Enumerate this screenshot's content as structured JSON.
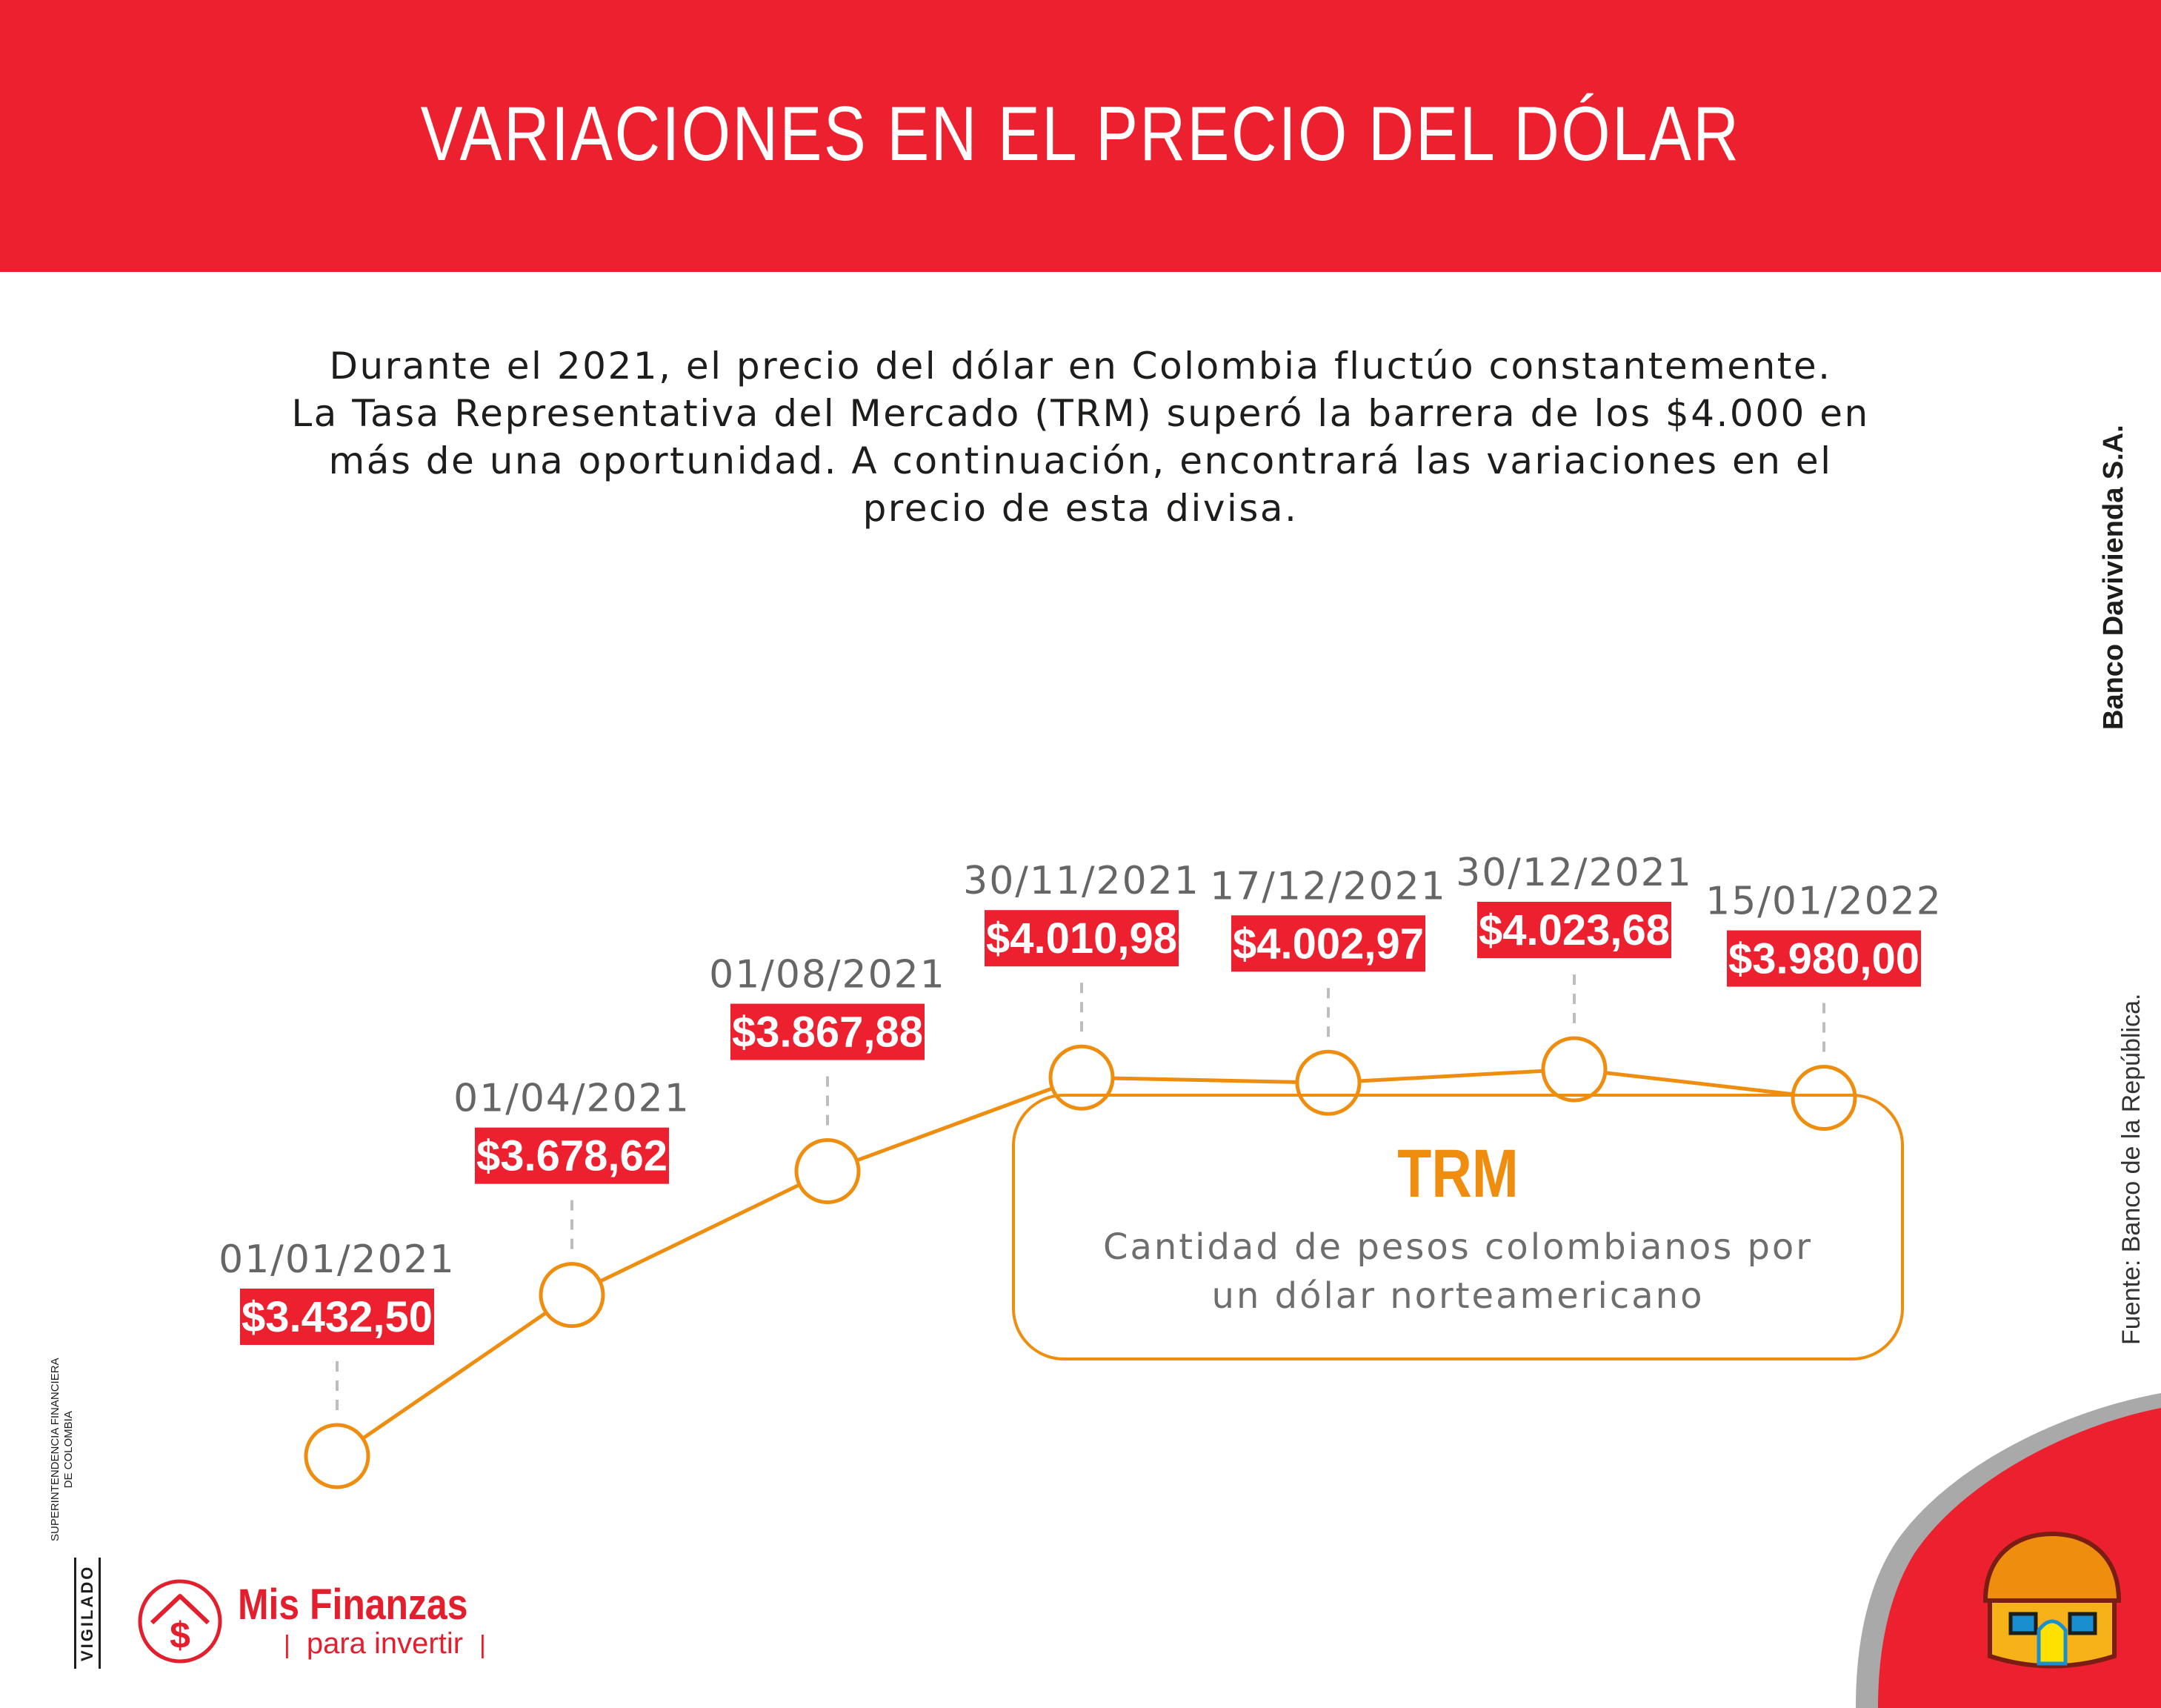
{
  "header": {
    "title": "VARIACIONES EN EL PRECIO DEL DÓLAR"
  },
  "intro": {
    "lines": [
      "Durante el 2021, el precio del dólar en Colombia fluctúo constantemente.",
      "La Tasa Representativa del Mercado (TRM) superó la barrera de los $4.000 en",
      "más de una oportunidad. A continuación, encontrará las variaciones en el",
      "precio de esta divisa."
    ]
  },
  "chart_data": {
    "type": "line",
    "title": "",
    "xlabel": "",
    "ylabel": "",
    "x": [
      "01/01/2021",
      "01/04/2021",
      "01/08/2021",
      "30/11/2021",
      "17/12/2021",
      "30/12/2021",
      "15/01/2022"
    ],
    "values": [
      3432.5,
      3678.62,
      3867.88,
      4010.98,
      4002.97,
      4023.68,
      3980.0
    ],
    "value_labels": [
      "$3.432,50",
      "$3.678,62",
      "$3.867,88",
      "$4.010,98",
      "$4.002,97",
      "$4.023,68",
      "$3.980,00"
    ],
    "axes_visible": false,
    "grid": false,
    "line_color": "#ef8d0f",
    "label_bg_color": "#ec202e"
  },
  "trm_box": {
    "title": "TRM",
    "description_lines": [
      "Cantidad de pesos colombianos por",
      "un dólar norteamericano"
    ]
  },
  "side": {
    "bank": "Banco Davivienda S.A.",
    "source": "Fuente: Banco de la República."
  },
  "footer": {
    "vigilado": "VIGILADO",
    "superfin_lines": [
      "SUPERINTENDENCIA FINANCIERA",
      "DE COLOMBIA"
    ],
    "brand_name": "Mis Finanzas",
    "brand_sub": "para invertir"
  },
  "colors": {
    "primary_red": "#ec202e",
    "accent_orange": "#ef8d0f",
    "text_dark": "#1d1d1b"
  },
  "icons": [
    "dollar-house-icon",
    "davivienda-house-logo"
  ]
}
